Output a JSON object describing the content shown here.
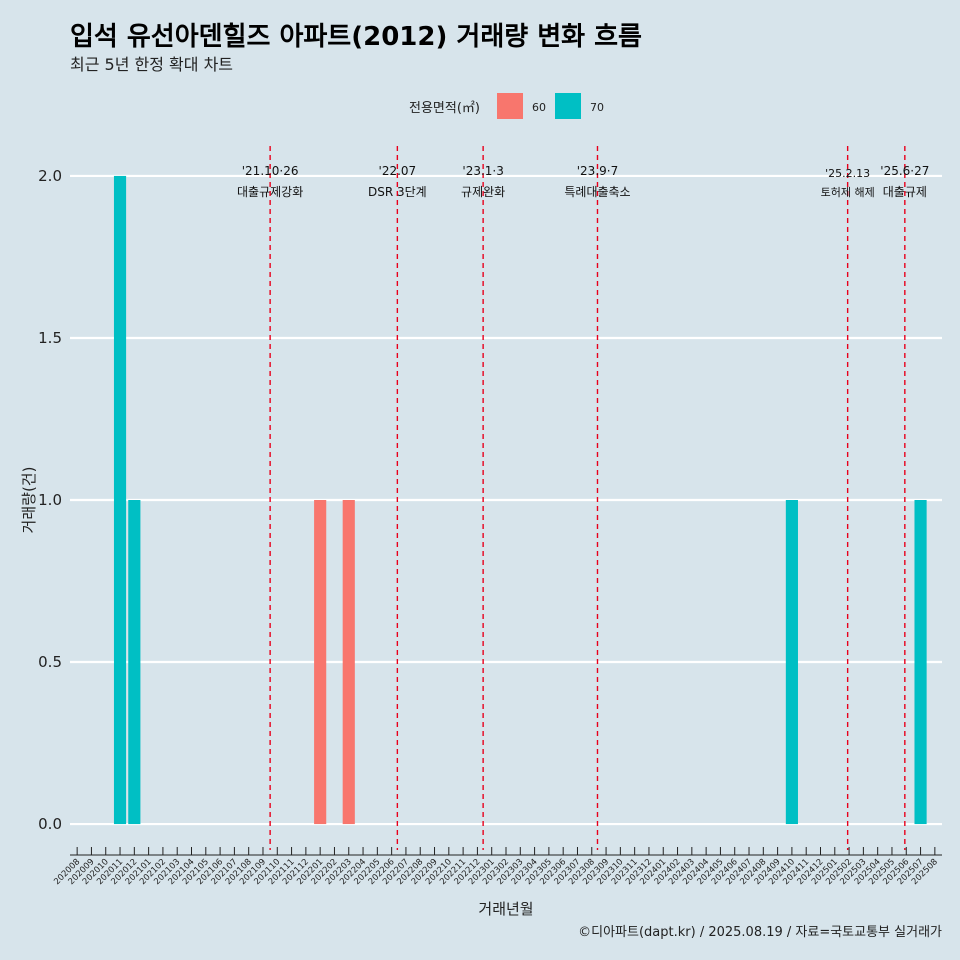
{
  "chart_data": {
    "type": "bar",
    "title": "입석 유선아덴힐즈 아파트(2012) 거래량 변화 흐름",
    "subtitle": "최근 5년 한정 확대 차트",
    "xlabel": "거래년월",
    "ylabel": "거래량(건)",
    "ylim": [
      -0.08,
      2.08
    ],
    "yticks": [
      "0.0",
      "0.5",
      "1.0",
      "1.5",
      "2.0"
    ],
    "ytick_values": [
      0,
      0.5,
      1.0,
      1.5,
      2.0
    ],
    "grid": true,
    "legend": {
      "title": "전용면적(㎡)",
      "placement": "top",
      "entries": [
        {
          "label": "60",
          "color": "#f8766d"
        },
        {
          "label": "70",
          "color": "#00bfc4"
        }
      ]
    },
    "categories": [
      "202008",
      "202009",
      "202010",
      "202011",
      "202012",
      "202101",
      "202102",
      "202103",
      "202104",
      "202105",
      "202106",
      "202107",
      "202108",
      "202109",
      "202110",
      "202111",
      "202112",
      "202201",
      "202202",
      "202203",
      "202204",
      "202205",
      "202206",
      "202207",
      "202208",
      "202209",
      "202210",
      "202211",
      "202212",
      "202301",
      "202302",
      "202303",
      "202304",
      "202305",
      "202306",
      "202307",
      "202308",
      "202309",
      "202310",
      "202311",
      "202312",
      "202401",
      "202402",
      "202403",
      "202404",
      "202405",
      "202406",
      "202407",
      "202408",
      "202409",
      "202410",
      "202411",
      "202412",
      "202501",
      "202502",
      "202503",
      "202504",
      "202505",
      "202506",
      "202507",
      "202508"
    ],
    "bars": [
      {
        "x": "202011",
        "series": "70",
        "value": 2,
        "color": "#00bfc4"
      },
      {
        "x": "202012",
        "series": "70",
        "value": 1,
        "color": "#00bfc4"
      },
      {
        "x": "202201",
        "series": "60",
        "value": 1,
        "color": "#f8766d"
      },
      {
        "x": "202203",
        "series": "60",
        "value": 1,
        "color": "#f8766d"
      },
      {
        "x": "202410",
        "series": "70",
        "value": 1,
        "color": "#00bfc4"
      },
      {
        "x": "202507",
        "series": "70",
        "value": 1,
        "color": "#00bfc4"
      }
    ],
    "events": [
      {
        "x": 14.0,
        "date": "'21.10·26",
        "name": "대출규제강화"
      },
      {
        "x": 22.9,
        "date": "'22.07",
        "name": "DSR 3단계"
      },
      {
        "x": 28.9,
        "date": "'23.1·3",
        "name": "규제완화"
      },
      {
        "x": 36.9,
        "date": "'23.9·7",
        "name": "특례대출축소"
      },
      {
        "x": 54.4,
        "date": "'25.2.13",
        "name": "토허제 해제",
        "small": true
      },
      {
        "x": 58.4,
        "date": "'25.6·27",
        "name": "대출규제"
      }
    ],
    "event_color": "#e8001c",
    "caption": "©디아파트(dapt.kr) / 2025.08.19 / 자료=국토교통부 실거래가"
  }
}
